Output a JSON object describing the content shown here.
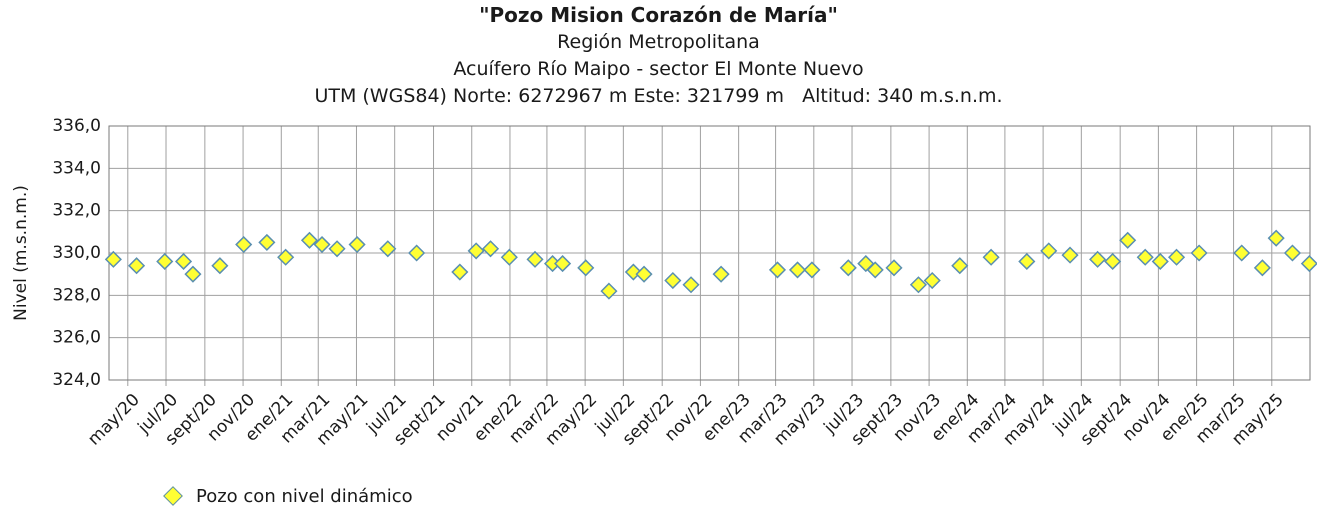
{
  "title": "\"Pozo Mision Corazón de María\"",
  "subtitle_lines": [
    "Región Metropolitana",
    "Acuífero Río Maipo - sector El Monte Nuevo",
    "UTM (WGS84) Norte: 6272967 m Este: 321799 m   Altitud: 340 m.s.n.m."
  ],
  "chart_data": {
    "type": "scatter",
    "title": "\"Pozo Mision Corazón de María\"",
    "ylabel": "Nivel (m.s.n.m.)",
    "xlabel": "",
    "ylim": [
      324,
      336
    ],
    "yticks": [
      "324,0",
      "326,0",
      "328,0",
      "330,0",
      "332,0",
      "334,0",
      "336,0"
    ],
    "xlim": [
      "2020-04-01",
      "2025-07-01"
    ],
    "xtick_labels": [
      "may/20",
      "jul/20",
      "sept/20",
      "nov/20",
      "ene/21",
      "mar/21",
      "may/21",
      "jul/21",
      "sept/21",
      "nov/21",
      "ene/22",
      "mar/22",
      "may/22",
      "jul/22",
      "sept/22",
      "nov/22",
      "ene/23",
      "mar/23",
      "may/23",
      "jul/23",
      "sept/23",
      "nov/23",
      "ene/24",
      "mar/24",
      "may/24",
      "jul/24",
      "sept/24",
      "nov/24",
      "ene/25",
      "mar/25",
      "may/25"
    ],
    "grid": true,
    "legend_position": "bottom-left",
    "marker_color": "#ffff33",
    "marker_edge_color": "#5a8fb0",
    "series": [
      {
        "name": "Pozo con nivel dinámico",
        "points": [
          {
            "x": "2020-04-08",
            "y": 329.7
          },
          {
            "x": "2020-05-15",
            "y": 329.4
          },
          {
            "x": "2020-06-29",
            "y": 329.6
          },
          {
            "x": "2020-07-29",
            "y": 329.6
          },
          {
            "x": "2020-08-13",
            "y": 329.0
          },
          {
            "x": "2020-09-25",
            "y": 329.4
          },
          {
            "x": "2020-11-02",
            "y": 330.4
          },
          {
            "x": "2020-12-09",
            "y": 330.5
          },
          {
            "x": "2021-01-08",
            "y": 329.8
          },
          {
            "x": "2021-02-15",
            "y": 330.6
          },
          {
            "x": "2021-03-07",
            "y": 330.4
          },
          {
            "x": "2021-03-31",
            "y": 330.2
          },
          {
            "x": "2021-05-02",
            "y": 330.4
          },
          {
            "x": "2021-06-20",
            "y": 330.2
          },
          {
            "x": "2021-08-05",
            "y": 330.0
          },
          {
            "x": "2021-10-13",
            "y": 329.1
          },
          {
            "x": "2021-11-08",
            "y": 330.1
          },
          {
            "x": "2021-12-01",
            "y": 330.2
          },
          {
            "x": "2021-12-31",
            "y": 329.8
          },
          {
            "x": "2022-02-10",
            "y": 329.7
          },
          {
            "x": "2022-03-10",
            "y": 329.5
          },
          {
            "x": "2022-03-26",
            "y": 329.5
          },
          {
            "x": "2022-05-02",
            "y": 329.3
          },
          {
            "x": "2022-06-08",
            "y": 328.2
          },
          {
            "x": "2022-07-17",
            "y": 329.1
          },
          {
            "x": "2022-08-03",
            "y": 329.0
          },
          {
            "x": "2022-09-18",
            "y": 328.7
          },
          {
            "x": "2022-10-17",
            "y": 328.5
          },
          {
            "x": "2022-12-04",
            "y": 329.0
          },
          {
            "x": "2023-03-04",
            "y": 329.2
          },
          {
            "x": "2023-04-05",
            "y": 329.2
          },
          {
            "x": "2023-04-28",
            "y": 329.2
          },
          {
            "x": "2023-06-25",
            "y": 329.3
          },
          {
            "x": "2023-07-23",
            "y": 329.5
          },
          {
            "x": "2023-08-07",
            "y": 329.2
          },
          {
            "x": "2023-09-06",
            "y": 329.3
          },
          {
            "x": "2023-10-15",
            "y": 328.5
          },
          {
            "x": "2023-11-06",
            "y": 328.7
          },
          {
            "x": "2023-12-20",
            "y": 329.4
          },
          {
            "x": "2024-02-08",
            "y": 329.8
          },
          {
            "x": "2024-04-05",
            "y": 329.6
          },
          {
            "x": "2024-05-10",
            "y": 330.1
          },
          {
            "x": "2024-06-13",
            "y": 329.9
          },
          {
            "x": "2024-07-27",
            "y": 329.7
          },
          {
            "x": "2024-08-20",
            "y": 329.6
          },
          {
            "x": "2024-09-13",
            "y": 330.6
          },
          {
            "x": "2024-10-11",
            "y": 329.8
          },
          {
            "x": "2024-11-04",
            "y": 329.6
          },
          {
            "x": "2024-11-30",
            "y": 329.8
          },
          {
            "x": "2025-01-05",
            "y": 330.0
          },
          {
            "x": "2025-03-14",
            "y": 330.0
          },
          {
            "x": "2025-04-16",
            "y": 329.3
          },
          {
            "x": "2025-05-08",
            "y": 330.7
          },
          {
            "x": "2025-06-03",
            "y": 330.0
          },
          {
            "x": "2025-06-30",
            "y": 329.5
          }
        ]
      }
    ]
  },
  "legend": {
    "label": "Pozo con nivel dinámico"
  }
}
